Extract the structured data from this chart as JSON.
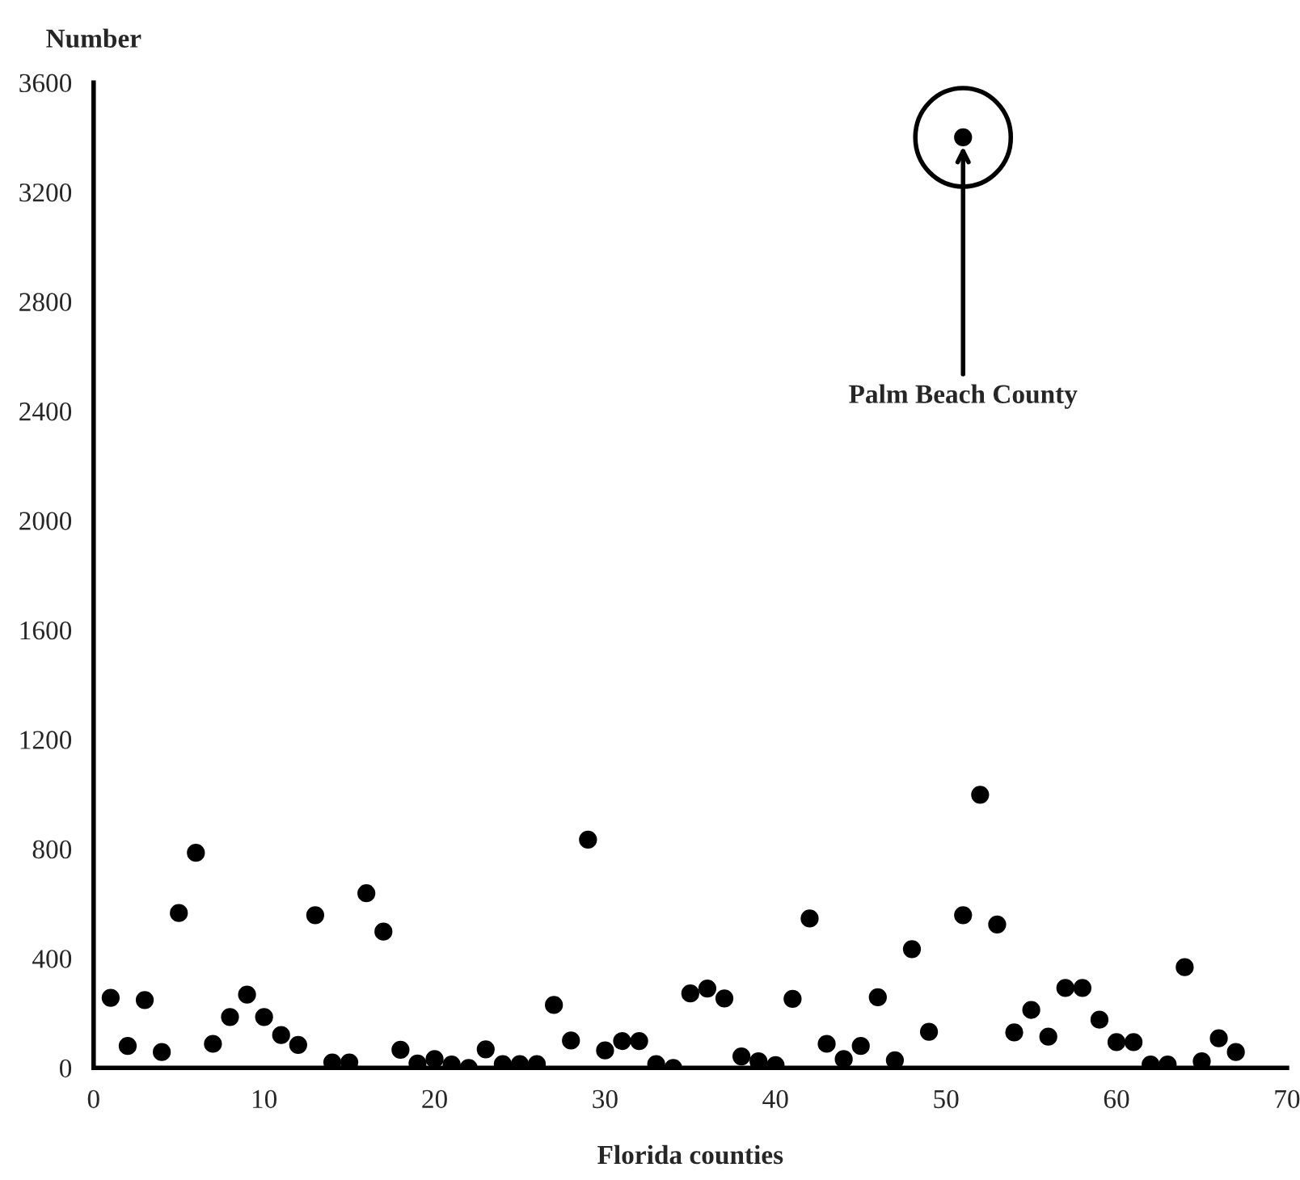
{
  "chart_data": {
    "type": "scatter",
    "xlabel": "Florida counties",
    "ylabel": "Number",
    "x": [
      1,
      2,
      3,
      4,
      5,
      6,
      7,
      8,
      9,
      10,
      11,
      12,
      13,
      14,
      15,
      16,
      17,
      18,
      19,
      20,
      21,
      22,
      23,
      24,
      25,
      26,
      27,
      28,
      29,
      30,
      31,
      32,
      33,
      34,
      35,
      36,
      37,
      38,
      39,
      40,
      41,
      42,
      43,
      44,
      45,
      46,
      47,
      48,
      49,
      51,
      51,
      52,
      53,
      54,
      55,
      56,
      57,
      58,
      59,
      60,
      61,
      62,
      63,
      64,
      65,
      66,
      67
    ],
    "values": [
      256,
      80,
      248,
      58,
      566,
      786,
      88,
      186,
      268,
      186,
      120,
      84,
      558,
      20,
      20,
      638,
      498,
      66,
      16,
      32,
      12,
      0,
      68,
      14,
      14,
      14,
      230,
      100,
      834,
      64,
      98,
      98,
      14,
      0,
      272,
      290,
      254,
      42,
      24,
      10,
      252,
      546,
      88,
      32,
      80,
      258,
      28,
      434,
      132,
      3400,
      558,
      998,
      524,
      130,
      212,
      114,
      292,
      292,
      176,
      94,
      94,
      12,
      12,
      368,
      24,
      108,
      58
    ],
    "color": "#000000",
    "marker": "circle",
    "xlim": [
      0,
      70
    ],
    "xticks": [
      0,
      10,
      20,
      30,
      40,
      50,
      60,
      70
    ],
    "ylim": [
      0,
      3600
    ],
    "yticks": [
      0,
      400,
      800,
      1200,
      1600,
      2000,
      2400,
      2800,
      3200,
      3600
    ],
    "annotations": [
      {
        "text": "Palm Beach County",
        "x": 51,
        "y": 3400
      }
    ],
    "grid": false,
    "legend": false
  }
}
